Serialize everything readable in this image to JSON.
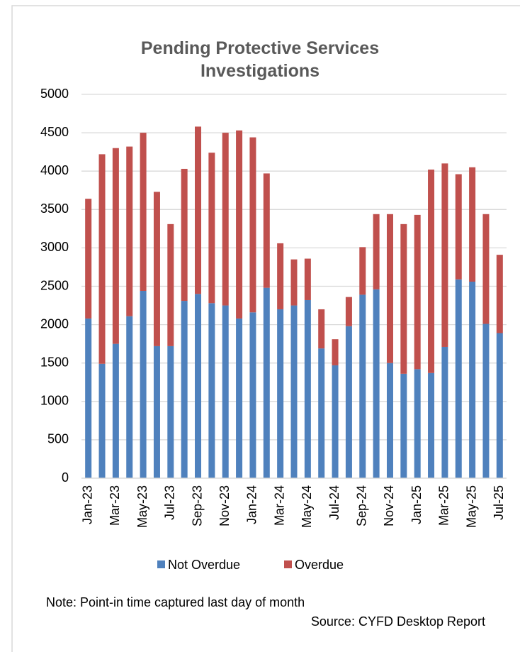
{
  "chart_data": {
    "type": "stacked_bar",
    "title": "Pending Protective Services Investigations",
    "categories": [
      "Jan-23",
      null,
      "Mar-23",
      null,
      "May-23",
      null,
      "Jul-23",
      null,
      "Sep-23",
      null,
      "Nov-23",
      null,
      "Jan-24",
      null,
      "Mar-24",
      null,
      "May-24",
      null,
      "Jul-24",
      null,
      "Sep-24",
      null,
      "Nov-24",
      null,
      "Jan-25",
      null,
      "Mar-25",
      null,
      "May-25",
      null,
      "Jul-25"
    ],
    "series": [
      {
        "name": "Not Overdue",
        "color": "#4f81bd",
        "values": [
          2080,
          1490,
          1750,
          2110,
          2440,
          1720,
          1720,
          2310,
          2400,
          2280,
          2250,
          2080,
          2160,
          2480,
          2200,
          2250,
          2320,
          1690,
          1470,
          1980,
          2390,
          2460,
          1500,
          1360,
          1420,
          1370,
          1710,
          2590,
          2560,
          2010,
          1890
        ]
      },
      {
        "name": "Overdue",
        "color": "#c0504d",
        "values": [
          1560,
          2730,
          2550,
          2210,
          2060,
          2010,
          1590,
          1720,
          2180,
          1960,
          2250,
          2450,
          2280,
          1490,
          860,
          600,
          540,
          510,
          340,
          380,
          620,
          980,
          1940,
          1950,
          2010,
          2650,
          2390,
          1370,
          1490,
          1430,
          1020
        ]
      }
    ],
    "ylim": [
      0,
      5000
    ],
    "yticks": [
      0,
      500,
      1000,
      1500,
      2000,
      2500,
      3000,
      3500,
      4000,
      4500,
      5000
    ],
    "grid": true,
    "legend": "bottom",
    "note": "Note: Point-in time captured last day of month",
    "source": "Source: CYFD Desktop Report"
  }
}
